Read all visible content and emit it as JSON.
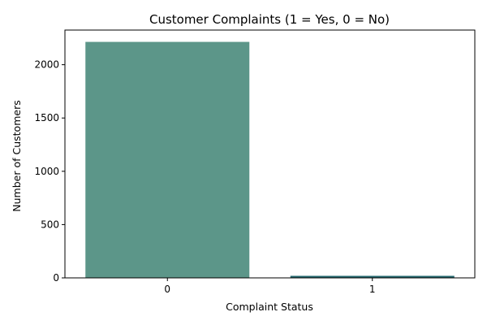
{
  "chart_data": {
    "type": "bar",
    "title": "Customer Complaints (1 = Yes, 0 = No)",
    "xlabel": "Complaint Status",
    "ylabel": "Number of Customers",
    "categories": [
      "0",
      "1"
    ],
    "values": [
      2214,
      19
    ],
    "colors": [
      "#5c9689",
      "#25676e"
    ],
    "ylim": [
      0,
      2325
    ],
    "yticks": [
      0,
      500,
      1000,
      1500,
      2000
    ],
    "grid": false,
    "legend": "none"
  }
}
